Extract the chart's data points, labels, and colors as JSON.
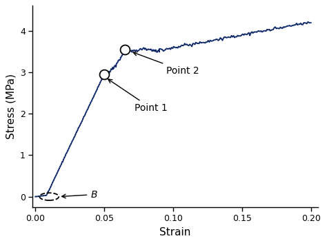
{
  "title": "",
  "xlabel": "Strain",
  "ylabel": "Stress (MPa)",
  "xlim": [
    -0.002,
    0.205
  ],
  "ylim": [
    -0.25,
    4.6
  ],
  "xticks": [
    0.0,
    0.05,
    0.1,
    0.15,
    0.2
  ],
  "xtick_labels": [
    "0.00",
    "0.05",
    "0.10",
    "0.15",
    "0.20"
  ],
  "yticks": [
    0,
    1,
    2,
    3,
    4
  ],
  "ytick_labels": [
    "0",
    "1",
    "2",
    "3",
    "4"
  ],
  "line_color": "#1a3a8a",
  "point_B": [
    0.01,
    0.0
  ],
  "point1": [
    0.05,
    2.95
  ],
  "point2": [
    0.065,
    3.55
  ],
  "label_B": "B",
  "label_point1": "Point 1",
  "label_point2": "Point 2",
  "bg_color": "#ffffff"
}
